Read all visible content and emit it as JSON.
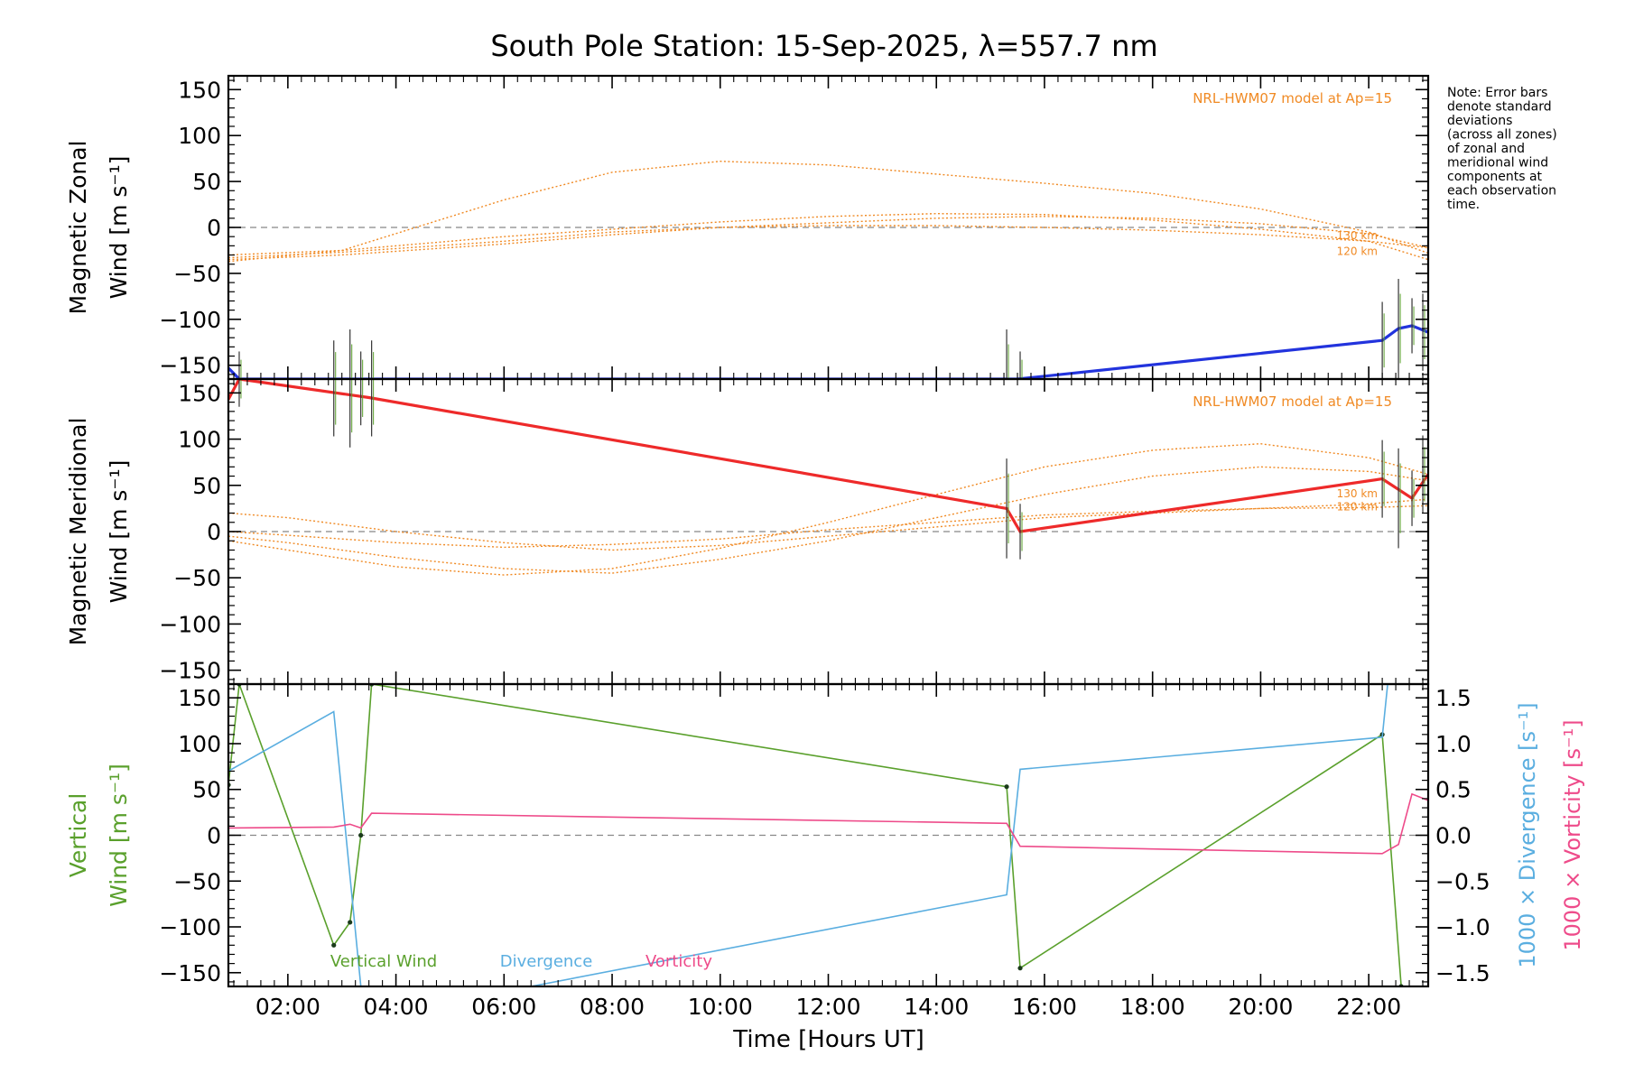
{
  "figure": {
    "title": "South Pole Station: 15-Sep-2025, λ=557.7 nm",
    "note": [
      "Note: Error bars",
      "denote standard",
      "deviations",
      "(across all zones)",
      "of zonal and",
      "meridional wind",
      "components at",
      "each observation",
      "time."
    ],
    "colors": {
      "zonal": "#2233dd",
      "meridional": "#ee2a2a",
      "model": "#f08a24",
      "vertical": "#5aa02c",
      "divergence": "#5aaee0",
      "vorticity": "#ee4b8a",
      "zero_line": "#888888",
      "axis": "#000000"
    }
  },
  "chart_data": [
    {
      "type": "line",
      "id": "zonal",
      "ylabel_lines": [
        "Magnetic Zonal",
        "Wind [m s⁻¹]"
      ],
      "xlim": [
        0.9,
        23.1
      ],
      "ylim": [
        -165,
        165
      ],
      "yticks": [
        150,
        100,
        50,
        0,
        -50,
        -100,
        -150
      ],
      "model_label": "NRL-HWM07 model at Ap=15",
      "model_alt_labels": [
        "130 km",
        "120 km"
      ],
      "series": [
        {
          "role": "measured",
          "x": [
            0.9,
            1.1,
            15.5,
            22.25,
            22.55,
            22.8,
            23.1
          ],
          "y": [
            -153,
            -165,
            -165,
            -123,
            -110,
            -107,
            -114
          ]
        }
      ],
      "model_curves": [
        {
          "x": [
            0.9,
            3,
            6,
            8,
            10,
            12,
            14,
            16,
            18,
            20,
            22,
            23.1
          ],
          "y": [
            -37,
            -25,
            30,
            60,
            72,
            68,
            58,
            48,
            37,
            20,
            -5,
            -28
          ]
        },
        {
          "x": [
            0.9,
            3,
            6,
            8,
            10,
            12,
            14,
            16,
            18,
            20,
            22,
            23.1
          ],
          "y": [
            -33,
            -27,
            -15,
            -5,
            0,
            2,
            2,
            0,
            -3,
            -8,
            -15,
            -22
          ]
        },
        {
          "x": [
            0.9,
            3,
            6,
            8,
            10,
            12,
            14,
            16,
            18,
            20,
            22,
            23.1
          ],
          "y": [
            -35,
            -30,
            -18,
            -8,
            0,
            5,
            10,
            12,
            10,
            4,
            -7,
            -22
          ]
        },
        {
          "x": [
            0.9,
            3,
            6,
            8,
            10,
            12,
            14,
            16,
            18,
            20,
            22,
            23.1
          ],
          "y": [
            -30,
            -25,
            -10,
            -2,
            6,
            12,
            15,
            14,
            8,
            -2,
            -15,
            -35
          ]
        }
      ]
    },
    {
      "type": "line",
      "id": "meridional",
      "ylabel_lines": [
        "Magnetic Meridional",
        "Wind [m s⁻¹]"
      ],
      "xlim": [
        0.9,
        23.1
      ],
      "ylim": [
        -165,
        165
      ],
      "yticks": [
        150,
        100,
        50,
        0,
        -50,
        -100,
        -150
      ],
      "model_label": "NRL-HWM07 model at Ap=15",
      "model_alt_labels": [
        "130 km",
        "120 km"
      ],
      "series": [
        {
          "role": "measured",
          "x": [
            0.9,
            1.1,
            3.5,
            15.3,
            15.55,
            22.25,
            22.8,
            23.1
          ],
          "y": [
            143,
            165,
            145,
            25,
            0,
            57,
            36,
            62
          ]
        }
      ],
      "model_curves": [
        {
          "x": [
            0.9,
            2,
            4,
            6,
            8,
            10,
            12,
            14,
            16,
            18,
            20,
            22,
            23.1
          ],
          "y": [
            20,
            15,
            0,
            -12,
            -20,
            -15,
            -5,
            5,
            15,
            20,
            25,
            30,
            35
          ]
        },
        {
          "x": [
            0.9,
            2,
            4,
            6,
            8,
            10,
            12,
            14,
            16,
            18,
            20,
            22,
            23.1
          ],
          "y": [
            -5,
            -12,
            -28,
            -40,
            -45,
            -30,
            -10,
            15,
            40,
            60,
            70,
            65,
            55
          ]
        },
        {
          "x": [
            0.9,
            2,
            4,
            6,
            8,
            10,
            12,
            14,
            16,
            18,
            20,
            22,
            23.1
          ],
          "y": [
            -10,
            -20,
            -38,
            -47,
            -40,
            -18,
            10,
            40,
            70,
            88,
            95,
            80,
            62
          ]
        },
        {
          "x": [
            0.9,
            2,
            4,
            6,
            8,
            10,
            12,
            14,
            16,
            18,
            20,
            22,
            23.1
          ],
          "y": [
            0,
            -4,
            -12,
            -17,
            -14,
            -8,
            2,
            10,
            18,
            22,
            25,
            26,
            28
          ]
        }
      ]
    },
    {
      "type": "line",
      "id": "vertical",
      "ylabel_lines": [
        "Vertical",
        "Wind [m s⁻¹]"
      ],
      "y2label_lines": [
        "1000 × Divergence [s⁻¹]",
        "1000 × Vorticity [s⁻¹]"
      ],
      "xlabel": "Time [Hours UT]",
      "xlim": [
        0.9,
        23.1
      ],
      "xticks": [
        "02:00",
        "04:00",
        "06:00",
        "08:00",
        "10:00",
        "12:00",
        "14:00",
        "16:00",
        "18:00",
        "20:00",
        "22:00"
      ],
      "ylim": [
        -165,
        165
      ],
      "yticks": [
        150,
        100,
        50,
        0,
        -50,
        -100,
        -150
      ],
      "y2lim": [
        -1.65,
        1.65
      ],
      "y2ticks": [
        "1.5",
        "1.0",
        "0.5",
        "0.0",
        "-0.5",
        "-1.0",
        "-1.5"
      ],
      "legend": [
        "Vertical Wind",
        "Divergence",
        "Vorticity"
      ],
      "series": [
        {
          "name": "Vertical Wind",
          "axis": "left",
          "x": [
            0.9,
            1.1,
            2.85,
            3.15,
            3.35,
            3.55,
            15.3,
            15.55,
            22.25,
            22.6
          ],
          "y": [
            55,
            165,
            -120,
            -95,
            0,
            165,
            53,
            -145,
            110,
            -165
          ]
        },
        {
          "name": "Divergence",
          "axis": "right",
          "x": [
            0.9,
            2.85,
            3.35,
            3.55,
            6.5,
            15.3,
            15.55,
            22.25,
            22.35
          ],
          "y": [
            0.7,
            1.35,
            -1.65,
            -1.65,
            -1.65,
            -0.65,
            0.72,
            1.07,
            1.65
          ]
        },
        {
          "name": "Vorticity",
          "axis": "right",
          "x": [
            0.9,
            2.85,
            3.15,
            3.35,
            3.55,
            15.3,
            15.55,
            22.25,
            22.55,
            22.8,
            23.1
          ],
          "y": [
            0.08,
            0.09,
            0.12,
            0.08,
            0.24,
            0.13,
            -0.12,
            -0.2,
            -0.1,
            0.45,
            0.38
          ]
        }
      ]
    }
  ]
}
